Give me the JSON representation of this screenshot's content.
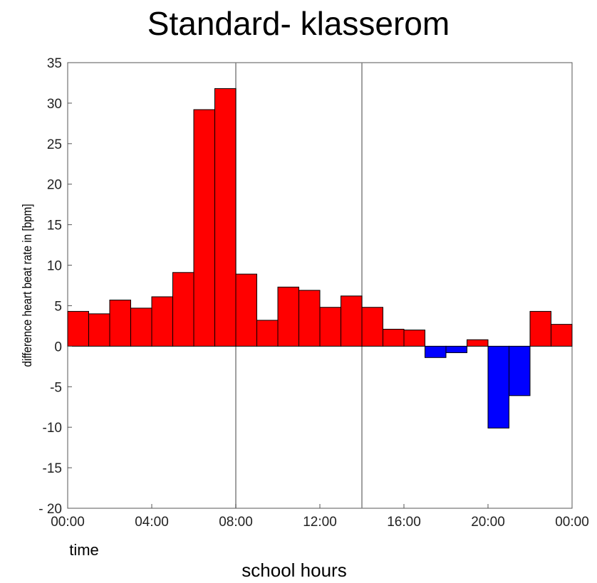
{
  "chart_data": {
    "type": "bar",
    "title": "Standard- klasserom",
    "ylabel": "difference heart beat rate in [bpm]",
    "xlabel": "time",
    "xlabel2": "school hours",
    "ylim": [
      -20,
      35
    ],
    "yticks": [
      35,
      30,
      25,
      20,
      15,
      10,
      5,
      0,
      -5,
      -10,
      -15,
      -20
    ],
    "ytick_labels": [
      "35",
      "30",
      "25",
      "20",
      "15",
      "10",
      "5",
      "0",
      "-5",
      "-10",
      "-15",
      "- 20"
    ],
    "xlim": [
      0,
      24
    ],
    "xticks": [
      0,
      4,
      8,
      12,
      16,
      20,
      24
    ],
    "xtick_labels": [
      "00:00",
      "04:00",
      "08:00",
      "12:00",
      "16:00",
      "20:00",
      "00:00"
    ],
    "vlines": [
      8,
      14
    ],
    "grid": false,
    "bin_width_hours": 1,
    "values": [
      4.3,
      4.0,
      5.7,
      4.7,
      6.1,
      9.1,
      29.2,
      31.8,
      8.9,
      3.2,
      7.3,
      6.9,
      4.8,
      6.2,
      4.8,
      2.1,
      2.0,
      -1.4,
      -0.8,
      0.8,
      -10.1,
      -6.1,
      4.3,
      2.7
    ],
    "colors": {
      "positive": "#ff0000",
      "negative": "#0000ff",
      "edge": "#000000",
      "vline": "#808080"
    }
  }
}
